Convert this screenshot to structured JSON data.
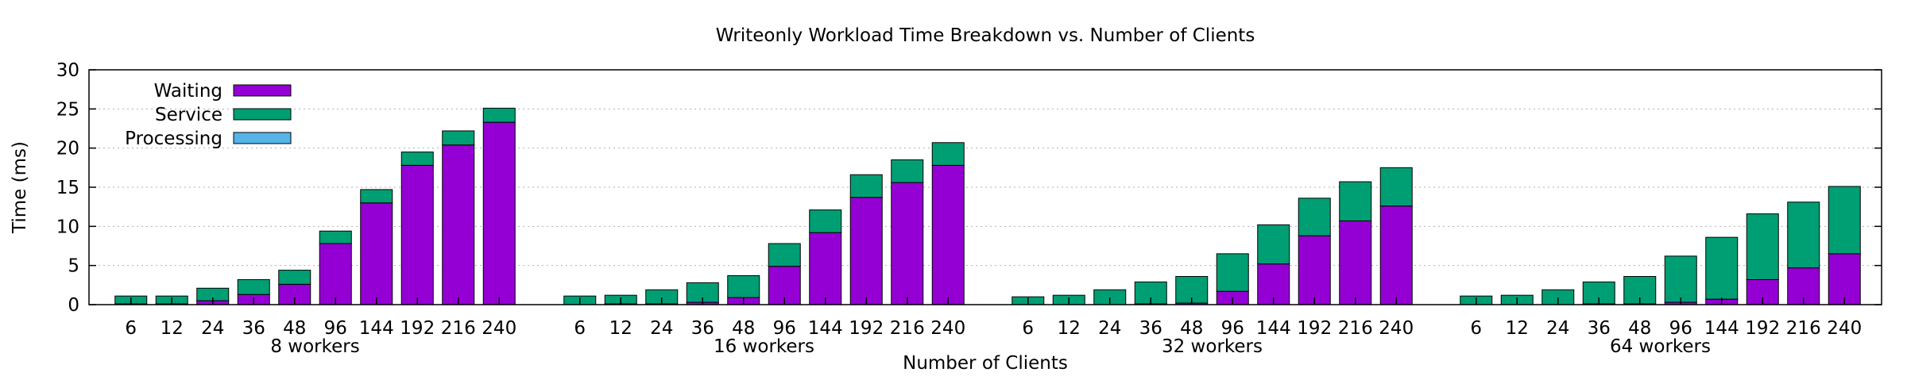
{
  "chart_data": {
    "type": "bar",
    "stacked": true,
    "title": "Writeonly Workload Time Breakdown vs. Number of Clients",
    "xlabel": "Number of Clients",
    "ylabel": "Time (ms)",
    "ylim": [
      0,
      30
    ],
    "yticks": [
      0,
      5,
      10,
      15,
      20,
      25,
      30
    ],
    "grid": true,
    "legend_position": "top-left",
    "stack_order": [
      "Processing",
      "Waiting",
      "Service"
    ],
    "series": [
      {
        "name": "Waiting",
        "color": "#9400d3"
      },
      {
        "name": "Service",
        "color": "#009e73"
      },
      {
        "name": "Processing",
        "color": "#56b4e9"
      }
    ],
    "categories": [
      "6",
      "12",
      "24",
      "36",
      "48",
      "96",
      "144",
      "192",
      "216",
      "240"
    ],
    "groups": [
      {
        "label": "8 workers",
        "Processing": [
          0,
          0,
          0,
          0,
          0,
          0,
          0,
          0,
          0,
          0
        ],
        "Waiting": [
          0.1,
          0.1,
          0.5,
          1.3,
          2.6,
          7.8,
          13.0,
          17.8,
          20.4,
          23.3
        ],
        "Service": [
          1.0,
          1.0,
          1.6,
          1.9,
          1.8,
          1.6,
          1.7,
          1.7,
          1.8,
          1.8
        ]
      },
      {
        "label": "16 workers",
        "Processing": [
          0,
          0,
          0,
          0,
          0,
          0,
          0,
          0,
          0,
          0
        ],
        "Waiting": [
          0.0,
          0.1,
          0.1,
          0.3,
          0.9,
          4.9,
          9.2,
          13.7,
          15.6,
          17.8
        ],
        "Service": [
          1.1,
          1.1,
          1.8,
          2.5,
          2.8,
          2.9,
          2.9,
          2.9,
          2.9,
          2.9
        ]
      },
      {
        "label": "32 workers",
        "Processing": [
          0,
          0,
          0,
          0,
          0,
          0,
          0,
          0,
          0,
          0
        ],
        "Waiting": [
          0.0,
          0.0,
          0.0,
          0.1,
          0.2,
          1.7,
          5.2,
          8.8,
          10.7,
          12.6
        ],
        "Service": [
          1.0,
          1.2,
          1.9,
          2.8,
          3.4,
          4.8,
          5.0,
          4.8,
          5.0,
          4.9
        ]
      },
      {
        "label": "64 workers",
        "Processing": [
          0,
          0,
          0,
          0,
          0,
          0,
          0,
          0,
          0,
          0
        ],
        "Waiting": [
          0.0,
          0.0,
          0.0,
          0.1,
          0.1,
          0.3,
          0.7,
          3.2,
          4.7,
          6.5
        ],
        "Service": [
          1.1,
          1.2,
          1.9,
          2.8,
          3.5,
          5.9,
          7.9,
          8.4,
          8.4,
          8.6
        ]
      }
    ]
  }
}
